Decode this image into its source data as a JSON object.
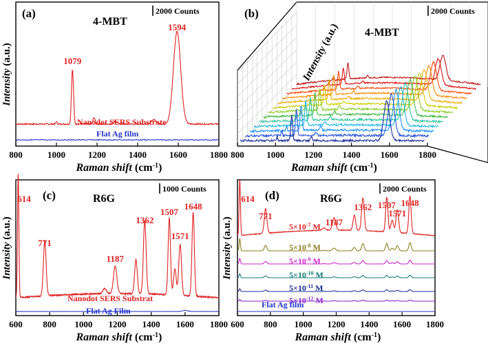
{
  "chart_data": [
    {
      "panel": "(a)",
      "type": "line",
      "title": "4-MBT",
      "xlabel": "Raman shift",
      "xunit": "(cm",
      "xunit_sup": "-1",
      "xunit_close": ")",
      "ylabel": "Intensity",
      "yunit": "(a.u.)",
      "xlim": [
        800,
        1800
      ],
      "xticks": [
        "800",
        "1000",
        "1200",
        "1400",
        "1600",
        "1800"
      ],
      "scalebar": "2000 Counts",
      "peak_labels": [
        "1079",
        "1594"
      ],
      "series": [
        {
          "name": "Nanodot SERS Substrate",
          "color": "#e02020",
          "baseline": 100,
          "peaks": [
            [
              1000,
              15,
              3
            ],
            [
              1079,
              330,
              5
            ],
            [
              1185,
              40,
              5
            ],
            [
              1290,
              18,
              8
            ],
            [
              1480,
              25,
              12
            ],
            [
              1594,
              560,
              18
            ]
          ]
        },
        {
          "name": "Flat Ag film",
          "color": "#2233cc",
          "baseline": 30,
          "peaks": []
        }
      ]
    },
    {
      "panel": "(b)",
      "type": "line",
      "title": "4-MBT",
      "xlabel": "Raman shift",
      "xunit": "(cm",
      "xunit_sup": "-1",
      "xunit_close": ")",
      "ylabel": "Intensity",
      "yunit": "(a.u.)",
      "xlim": [
        800,
        1800
      ],
      "xticks": [
        "800",
        "1000",
        "1200",
        "1400",
        "1600",
        "1800"
      ],
      "scalebar": "2000 Counts",
      "stack_colors": [
        "#1a2a99",
        "#2a55dd",
        "#1e90ff",
        "#22b8e8",
        "#2ec4a0",
        "#44bb44",
        "#88cc22",
        "#cccc00",
        "#eeaa00",
        "#ff8800",
        "#ff4400",
        "#dd1111",
        "#bb1111"
      ]
    },
    {
      "panel": "(c)",
      "type": "line",
      "title": "R6G",
      "xlabel": "Raman shift",
      "xunit": "(cm",
      "xunit_sup": "-1",
      "xunit_close": ")",
      "ylabel": "Intensity",
      "yunit": "(a.u.)",
      "xlim": [
        600,
        1800
      ],
      "xticks": [
        "600",
        "800",
        "1000",
        "1200",
        "1400",
        "1600",
        "1800"
      ],
      "scalebar": "1000 Counts",
      "peak_labels": [
        "614",
        "771",
        "1187",
        "1362",
        "1507",
        "1571",
        "1648"
      ],
      "series": [
        {
          "name": "Nanodot SERS Substrat",
          "color": "#e02020",
          "baseline": 150,
          "peaks": [
            [
              614,
              950,
              4
            ],
            [
              771,
              420,
              8
            ],
            [
              1125,
              40,
              10
            ],
            [
              1187,
              210,
              10
            ],
            [
              1310,
              260,
              8
            ],
            [
              1362,
              560,
              8
            ],
            [
              1507,
              590,
              7
            ],
            [
              1540,
              200,
              8
            ],
            [
              1571,
              390,
              8
            ],
            [
              1648,
              640,
              7
            ]
          ]
        },
        {
          "name": "Flat Ag Film",
          "color": "#2233cc",
          "baseline": 40,
          "peaks": [
            [
              1600,
              8,
              15
            ]
          ]
        }
      ]
    },
    {
      "panel": "(d)",
      "type": "line",
      "title": "R6G",
      "xlabel": "Raman shift",
      "xunit": "(cm",
      "xunit_sup": "-1",
      "xunit_close": ")",
      "ylabel": "Intensity",
      "yunit": "(a.u.)",
      "xlim": [
        600,
        1800
      ],
      "xticks": [
        "600",
        "800",
        "1000",
        "1200",
        "1400",
        "1600",
        "1800"
      ],
      "scalebar": "2000 Counts",
      "peak_labels": [
        "614",
        "771",
        "1187",
        "1362",
        "1507",
        "1571",
        "1648"
      ],
      "series": [
        {
          "name": "5×10",
          "exp": "-7",
          "unit": " M",
          "color": "#e02020",
          "scale": 1.0,
          "offset": 6
        },
        {
          "name": "5×10",
          "exp": "-8",
          "unit": " M",
          "color": "#8b7d1a",
          "scale": 0.22,
          "offset": 5
        },
        {
          "name": "5×10",
          "exp": "-9",
          "unit": " M",
          "color": "#cc22cc",
          "scale": 0.1,
          "offset": 4
        },
        {
          "name": "5×10",
          "exp": "-10",
          "unit": " M",
          "color": "#117a7a",
          "scale": 0.07,
          "offset": 3
        },
        {
          "name": "5×10",
          "exp": "-11",
          "unit": " M",
          "color": "#1a2a99",
          "scale": 0.05,
          "offset": 2
        },
        {
          "name": "5×10",
          "exp": "-12",
          "unit": " M",
          "color": "#8822cc",
          "scale": 0.03,
          "offset": 1
        },
        {
          "name": "Flat Ag film",
          "exp": "",
          "unit": "",
          "color": "#2233cc",
          "scale": 0.0,
          "offset": 0
        }
      ]
    }
  ]
}
